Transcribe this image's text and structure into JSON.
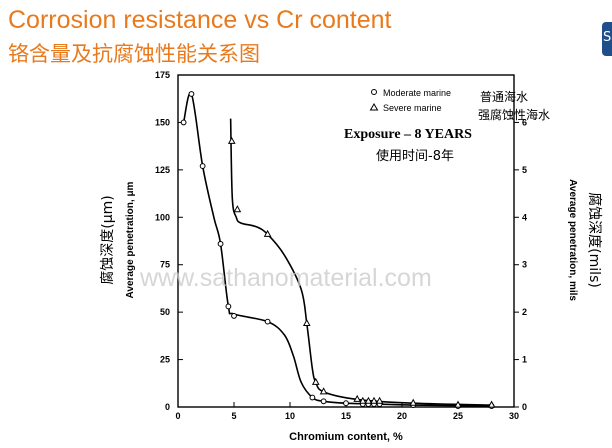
{
  "header": {
    "title_en": "Corrosion resistance vs Cr content",
    "title_cn": "铬含量及抗腐蚀性能关系图",
    "title_color": "#e87a1d",
    "corner_tab_glyph": "S"
  },
  "chart_data": {
    "type": "line",
    "xlabel": "Chromium content, %",
    "ylabel_left": "Average penetration, μm",
    "ylabel_left_cn": "腐蚀深度(μm)",
    "ylabel_right": "Average penetration, mils",
    "ylabel_right_cn": "腐蚀深度(mils)",
    "xlim": [
      0,
      30
    ],
    "ylim_left": [
      0,
      175
    ],
    "ylim_right": [
      0,
      7
    ],
    "x_ticks": [
      "0",
      "5",
      "10",
      "15",
      "20",
      "25",
      "30"
    ],
    "y_ticks_left": [
      "0",
      "25",
      "50",
      "75",
      "100",
      "125",
      "150",
      "175"
    ],
    "y_ticks_right": [
      "0",
      "1",
      "2",
      "3",
      "4",
      "5",
      "6"
    ],
    "legend": {
      "placement": "top-right",
      "entries": [
        {
          "marker": "circle",
          "label": "Moderate marine",
          "label_cn": "普通海水"
        },
        {
          "marker": "triangle",
          "label": "Severe marine",
          "label_cn": "强腐蚀性海水"
        }
      ]
    },
    "annotation": "Exposure – 8 YEARS",
    "annotation_cn": "使用时间-8年",
    "watermark": "www.sathanomaterial.com",
    "series": [
      {
        "name": "Moderate marine",
        "marker": "circle",
        "points": [
          [
            0.5,
            150
          ],
          [
            1.2,
            165
          ],
          [
            2.2,
            127
          ],
          [
            3.8,
            86
          ],
          [
            4.5,
            53
          ],
          [
            5,
            48
          ],
          [
            8,
            45
          ],
          [
            12,
            5
          ],
          [
            13,
            3
          ],
          [
            15,
            2
          ],
          [
            16.5,
            1.5
          ],
          [
            17,
            1.5
          ],
          [
            17.5,
            1.5
          ],
          [
            18,
            1.5
          ],
          [
            21,
            1
          ],
          [
            25,
            0.5
          ],
          [
            28,
            0.5
          ]
        ],
        "curve": [
          [
            0.5,
            150
          ],
          [
            1.2,
            165
          ],
          [
            2.2,
            127
          ],
          [
            3.2,
            100
          ],
          [
            3.8,
            86
          ],
          [
            4.5,
            53
          ],
          [
            5,
            49
          ],
          [
            8,
            45
          ],
          [
            9.5,
            38
          ],
          [
            10.3,
            27
          ],
          [
            11,
            13
          ],
          [
            12,
            5
          ],
          [
            13,
            3
          ],
          [
            15,
            2
          ],
          [
            18,
            1.5
          ],
          [
            21,
            1
          ],
          [
            28,
            0.5
          ]
        ]
      },
      {
        "name": "Severe marine",
        "marker": "triangle",
        "points": [
          [
            4.8,
            140
          ],
          [
            5.3,
            104
          ],
          [
            8,
            91
          ],
          [
            11.5,
            44
          ],
          [
            12.3,
            13
          ],
          [
            13,
            8
          ],
          [
            16,
            4
          ],
          [
            16.5,
            3
          ],
          [
            17,
            3
          ],
          [
            17.5,
            3
          ],
          [
            18,
            3
          ],
          [
            21,
            2
          ],
          [
            25,
            1
          ],
          [
            28,
            1
          ]
        ],
        "curve": [
          [
            4.7,
            152
          ],
          [
            4.85,
            110
          ],
          [
            5.2,
            100
          ],
          [
            5.6,
            97
          ],
          [
            7.0,
            95
          ],
          [
            8,
            91
          ],
          [
            9.5,
            80
          ],
          [
            11.0,
            62
          ],
          [
            11.5,
            44
          ],
          [
            12.0,
            20
          ],
          [
            12.3,
            13
          ],
          [
            13,
            8
          ],
          [
            16,
            4
          ],
          [
            21,
            2
          ],
          [
            28,
            1
          ]
        ]
      }
    ]
  }
}
